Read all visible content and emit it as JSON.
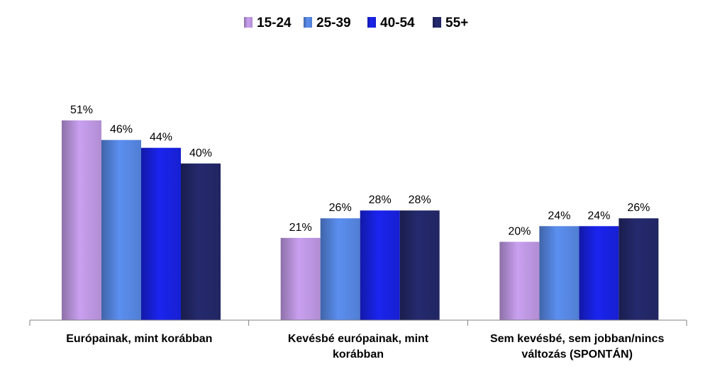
{
  "chart_data": {
    "type": "bar",
    "categories": [
      [
        "Európainak, mint korábban"
      ],
      [
        "Kevésbé európainak, mint",
        "korábban"
      ],
      [
        "Sem kevésbé, sem jobban/nincs",
        "változás (SPONTÁN)"
      ]
    ],
    "series": [
      {
        "name": "15-24",
        "values": [
          51,
          21,
          20
        ],
        "color": "#c9a0f0"
      },
      {
        "name": "25-39",
        "values": [
          46,
          26,
          24
        ],
        "color": "#5b8ff0"
      },
      {
        "name": "40-54",
        "values": [
          44,
          28,
          24
        ],
        "color": "#1a24ee"
      },
      {
        "name": "55+",
        "values": [
          40,
          28,
          26
        ],
        "color": "#252a6e"
      }
    ],
    "value_suffix": "%",
    "ylim": [
      0,
      51
    ],
    "legend_position": "top-center",
    "grid": false
  }
}
